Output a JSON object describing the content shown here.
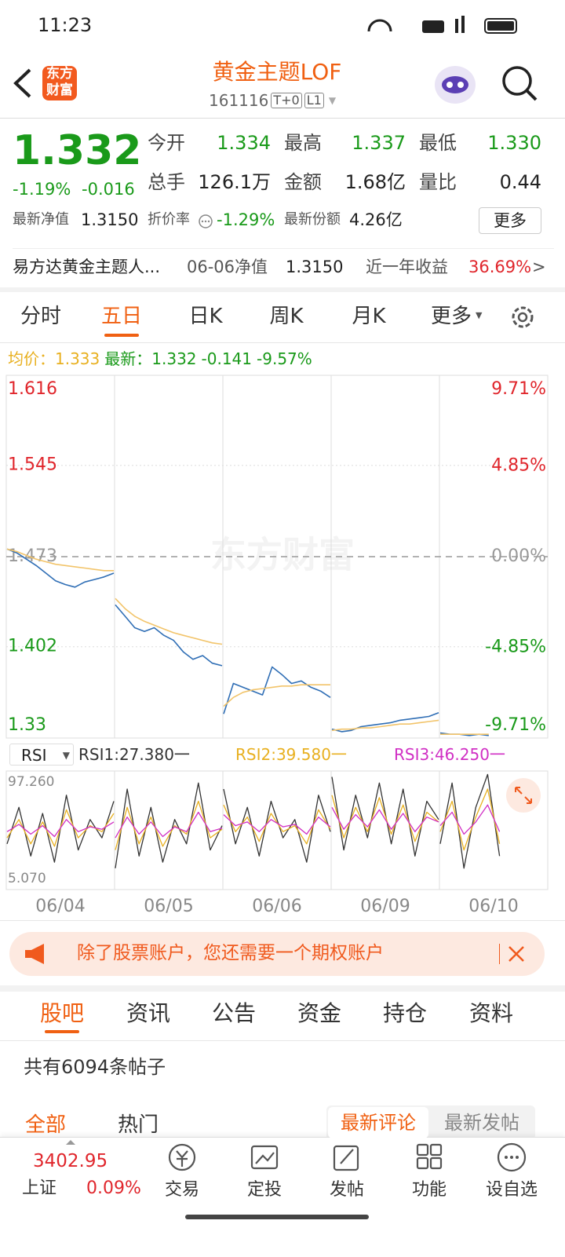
{
  "status_bar": {
    "time": "11:23"
  },
  "header": {
    "logo": "东方财富",
    "title": "黄金主题LOF",
    "code": "161116",
    "badges": [
      "T+0",
      "L1"
    ]
  },
  "quote": {
    "price": "1.332",
    "change_pct": "-1.19%",
    "change": "-0.016",
    "stats": [
      {
        "label": "今开",
        "value": "1.334",
        "color": "#1a9a1a"
      },
      {
        "label": "最高",
        "value": "1.337",
        "color": "#1a9a1a"
      },
      {
        "label": "最低",
        "value": "1.330",
        "color": "#1a9a1a"
      },
      {
        "label": "总手",
        "value": "126.1万",
        "color": "#222222"
      },
      {
        "label": "金额",
        "value": "1.68亿",
        "color": "#222222"
      },
      {
        "label": "量比",
        "value": "0.44",
        "color": "#222222"
      }
    ],
    "nav_label": "最新净值",
    "nav": "1.3150",
    "discount_label": "折价率",
    "discount": "-1.29%",
    "shares_label": "最新份额",
    "shares": "4.26亿",
    "more": "更多"
  },
  "fund_row": {
    "name": "易方达黄金主题人...",
    "nav_label": "06-06净值",
    "nav": "1.3150",
    "return_label": "近一年收益",
    "return": "36.69%",
    "arrow": ">"
  },
  "period_tabs": {
    "items": [
      "分时",
      "五日",
      "日K",
      "周K",
      "月K",
      "更多"
    ],
    "active": 1
  },
  "chart_legend": {
    "avg_label": "均价：",
    "avg": "1.333",
    "last_label": "最新：",
    "last": "1.332",
    "change": "-0.141",
    "change_pct": "-9.57%"
  },
  "watermark": "东方财富",
  "rsi_legend": {
    "selector": "RSI",
    "items": [
      "RSI1:27.380一",
      "RSI2:39.580一",
      "RSI3:46.250一"
    ]
  },
  "chart_data": [
    {
      "type": "line",
      "ylim": [
        1.33,
        1.616
      ],
      "yticks": [
        1.616,
        1.545,
        1.473,
        1.402,
        1.33
      ],
      "y2lim": [
        -9.71,
        9.71
      ],
      "y2ticks": [
        {
          "value": 9.71,
          "label": "9.71%"
        },
        {
          "value": 4.85,
          "label": "4.85%"
        },
        {
          "value": 0,
          "label": "0.00%"
        },
        {
          "value": -4.85,
          "label": "-4.85%"
        },
        {
          "value": -9.71,
          "label": "-9.71%"
        }
      ],
      "grid": true,
      "series": [
        {
          "color": "#2f6eb5",
          "values": [
            [
              1.479,
              1.476,
              1.471,
              1.466,
              1.46,
              1.454,
              1.451,
              1.449,
              1.453,
              1.455,
              1.457,
              1.46
            ],
            [
              1.435,
              1.426,
              1.417,
              1.414,
              1.417,
              1.411,
              1.407,
              1.398,
              1.392,
              1.395,
              1.389,
              1.387
            ],
            [
              1.349,
              1.373,
              1.37,
              1.367,
              1.364,
              1.386,
              1.38,
              1.373,
              1.375,
              1.37,
              1.367,
              1.362
            ],
            [
              1.337,
              1.335,
              1.336,
              1.339,
              1.34,
              1.341,
              1.342,
              1.344,
              1.345,
              1.346,
              1.347,
              1.35
            ],
            [
              1.334,
              1.333,
              1.333,
              1.332,
              1.333,
              1.332
            ]
          ]
        },
        {
          "color": "#f2c46a",
          "values": [
            [
              1.479,
              1.477,
              1.474,
              1.471,
              1.469,
              1.467,
              1.466,
              1.465,
              1.464,
              1.463,
              1.462,
              1.462
            ],
            [
              1.44,
              1.432,
              1.426,
              1.422,
              1.419,
              1.416,
              1.413,
              1.411,
              1.409,
              1.407,
              1.405,
              1.404
            ],
            [
              1.355,
              1.362,
              1.366,
              1.368,
              1.369,
              1.37,
              1.371,
              1.371,
              1.372,
              1.372,
              1.372,
              1.372
            ],
            [
              1.336,
              1.337,
              1.337,
              1.338,
              1.338,
              1.339,
              1.34,
              1.341,
              1.341,
              1.342,
              1.343,
              1.344
            ],
            [
              1.333,
              1.333,
              1.333,
              1.333,
              1.333,
              1.333
            ]
          ]
        }
      ]
    },
    {
      "type": "line",
      "ylim": [
        5.07,
        97.26
      ],
      "yticks": [
        {
          "value": 97.26,
          "label": "97.260"
        },
        {
          "value": 5.07,
          "label": "5.070"
        }
      ],
      "categories": [
        "06/04",
        "06/05",
        "06/06",
        "06/09",
        "06/10"
      ],
      "series": [
        {
          "color": "#333333",
          "values": [
            [
              40,
              70,
              30,
              65,
              25,
              80,
              35,
              60,
              45,
              75
            ],
            [
              20,
              85,
              30,
              70,
              25,
              60,
              40,
              90,
              35,
              55
            ],
            [
              85,
              40,
              70,
              30,
              75,
              45,
              60,
              25,
              80,
              50
            ],
            [
              95,
              35,
              80,
              45,
              90,
              40,
              85,
              30,
              75,
              60
            ],
            [
              40,
              90,
              20,
              70,
              97,
              30
            ]
          ]
        },
        {
          "color": "#e8b020",
          "values": [
            [
              45,
              60,
              40,
              58,
              38,
              68,
              45,
              55,
              50,
              65
            ],
            [
              35,
              70,
              40,
              62,
              38,
              55,
              48,
              75,
              45,
              52
            ],
            [
              72,
              50,
              62,
              42,
              65,
              50,
              55,
              40,
              68,
              52
            ],
            [
              80,
              45,
              70,
              50,
              78,
              48,
              72,
              42,
              66,
              58
            ],
            [
              50,
              75,
              35,
              62,
              85,
              40
            ]
          ]
        },
        {
          "color": "#d02fc4",
          "values": [
            [
              50,
              56,
              48,
              55,
              46,
              60,
              50,
              54,
              52,
              58
            ],
            [
              45,
              62,
              48,
              58,
              46,
              54,
              50,
              66,
              50,
              53
            ],
            [
              64,
              55,
              58,
              50,
              60,
              54,
              56,
              48,
              62,
              54
            ],
            [
              70,
              52,
              64,
              54,
              68,
              52,
              65,
              50,
              62,
              58
            ],
            [
              55,
              66,
              48,
              58,
              72,
              50
            ]
          ]
        }
      ]
    }
  ],
  "banner": {
    "text": "除了股票账户，您还需要一个期权账户"
  },
  "forum_tabs": {
    "items": [
      "股吧",
      "资讯",
      "公告",
      "资金",
      "持仓",
      "资料"
    ],
    "active": 0
  },
  "post_count": "共有6094条帖子",
  "filter_tabs": {
    "items": [
      "全部",
      "热门"
    ],
    "active": 0
  },
  "sort_tabs": {
    "items": [
      "最新评论",
      "最新发帖"
    ],
    "active": 0
  },
  "bottom_bar": {
    "index_value": "3402.95",
    "index_name": "上证",
    "index_change": "0.09%",
    "items": [
      "交易",
      "定投",
      "发帖",
      "功能",
      "设自选"
    ]
  }
}
